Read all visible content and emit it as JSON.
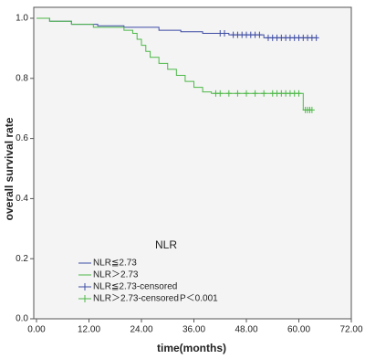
{
  "chart_data": {
    "type": "survival",
    "x_label": "time(months)",
    "y_label": "overall survival rate",
    "legend_title": "NLR",
    "annotation": "P＜0.001",
    "xlim": [
      0,
      72
    ],
    "xticks": [
      {
        "value": 0,
        "label": "0.00"
      },
      {
        "value": 12,
        "label": "12.00"
      },
      {
        "value": 24,
        "label": "24.00"
      },
      {
        "value": 36,
        "label": "36.00"
      },
      {
        "value": 48,
        "label": "48.00"
      },
      {
        "value": 60,
        "label": "60.00"
      },
      {
        "value": 72,
        "label": "72.00"
      }
    ],
    "ylim": [
      0,
      1
    ],
    "yticks": [
      {
        "value": 0,
        "label": "0.0"
      },
      {
        "value": 0.2,
        "label": "0.2"
      },
      {
        "value": 0.4,
        "label": "0.4"
      },
      {
        "value": 0.6,
        "label": "0.6"
      },
      {
        "value": 0.8,
        "label": "0.8"
      },
      {
        "value": 1,
        "label": "1.0"
      }
    ],
    "series": [
      {
        "name": "NLR≦2.73",
        "color": "#3c4ba3",
        "kind": "step",
        "x": [
          0,
          3,
          8,
          14,
          20,
          28,
          33,
          38,
          44,
          52,
          64
        ],
        "values": [
          1,
          0.99,
          0.98,
          0.975,
          0.97,
          0.96,
          0.955,
          0.95,
          0.945,
          0.935,
          0.935
        ]
      },
      {
        "name": "NLR＞2.73",
        "color": "#4cb847",
        "kind": "step",
        "x": [
          0,
          3,
          8,
          13,
          20,
          22,
          23,
          24,
          25,
          26,
          28,
          30,
          32,
          34,
          36,
          38,
          40,
          61,
          63
        ],
        "values": [
          1,
          0.99,
          0.98,
          0.97,
          0.96,
          0.95,
          0.93,
          0.91,
          0.89,
          0.87,
          0.85,
          0.83,
          0.81,
          0.79,
          0.77,
          0.755,
          0.75,
          0.695,
          0.695
        ]
      },
      {
        "name": "NLR≦2.73-censored",
        "color": "#3c4ba3",
        "kind": "censored",
        "x": [
          42,
          43,
          45,
          46,
          47,
          48,
          49,
          50,
          51,
          53,
          54,
          55,
          56,
          57,
          58,
          59,
          60,
          61,
          62,
          63,
          64
        ],
        "values": [
          0.95,
          0.95,
          0.945,
          0.945,
          0.945,
          0.945,
          0.945,
          0.945,
          0.945,
          0.935,
          0.935,
          0.935,
          0.935,
          0.935,
          0.935,
          0.935,
          0.935,
          0.935,
          0.935,
          0.935,
          0.935
        ]
      },
      {
        "name": "NLR＞2.73-censored",
        "color": "#4cb847",
        "kind": "censored",
        "x": [
          41,
          42,
          44,
          46,
          48,
          50,
          52,
          54,
          55,
          56,
          57,
          58,
          59,
          60,
          61.5,
          62,
          62.5,
          63
        ],
        "values": [
          0.75,
          0.75,
          0.75,
          0.75,
          0.75,
          0.75,
          0.75,
          0.75,
          0.75,
          0.75,
          0.75,
          0.75,
          0.75,
          0.75,
          0.695,
          0.695,
          0.695,
          0.695
        ]
      }
    ]
  }
}
